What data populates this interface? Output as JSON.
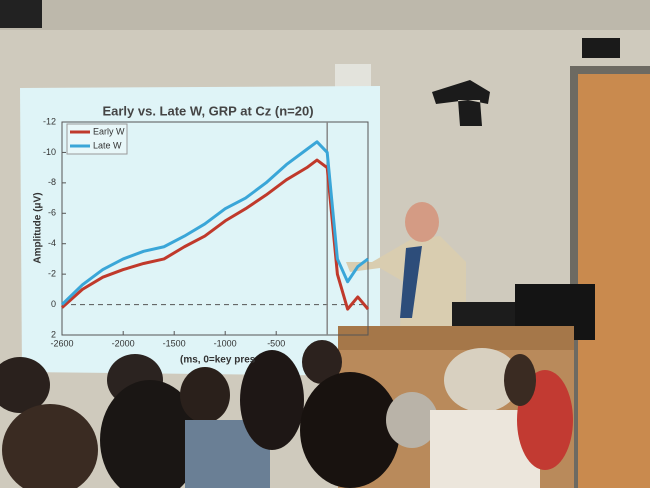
{
  "chart_data": {
    "type": "line",
    "title": "Early vs. Late W, GRP at Cz (n=20)",
    "x_label": "(ms, 0=key pres",
    "y_label": "Amplitude (μV)",
    "x": [
      -2600,
      -2400,
      -2200,
      -2000,
      -1800,
      -1600,
      -1400,
      -1200,
      -1000,
      -800,
      -600,
      -400,
      -200,
      -100,
      0,
      100,
      200,
      300,
      400
    ],
    "series": [
      {
        "name": "Early W",
        "color": "#c0392b",
        "values": [
          0.2,
          -1.0,
          -1.8,
          -2.3,
          -2.7,
          -3.0,
          -3.8,
          -4.5,
          -5.5,
          -6.3,
          -7.2,
          -8.2,
          -9.0,
          -9.5,
          -9.0,
          -2.0,
          0.3,
          -0.5,
          0.3
        ]
      },
      {
        "name": "Late W",
        "color": "#3aa6d8",
        "values": [
          0,
          -1.3,
          -2.3,
          -3.0,
          -3.5,
          -3.8,
          -4.5,
          -5.3,
          -6.3,
          -7.0,
          -8.0,
          -9.2,
          -10.2,
          -10.7,
          -10.0,
          -3.0,
          -1.5,
          -2.5,
          -3.0
        ]
      }
    ],
    "xlim": [
      -2600,
      400
    ],
    "xticks": [
      -2600,
      -2000,
      -1500,
      -1000,
      -500
    ],
    "ylim": [
      2,
      -12
    ],
    "yticks": [
      -12,
      -10,
      -8,
      -6,
      -4,
      -2,
      0,
      2
    ],
    "legend": "upper left"
  }
}
